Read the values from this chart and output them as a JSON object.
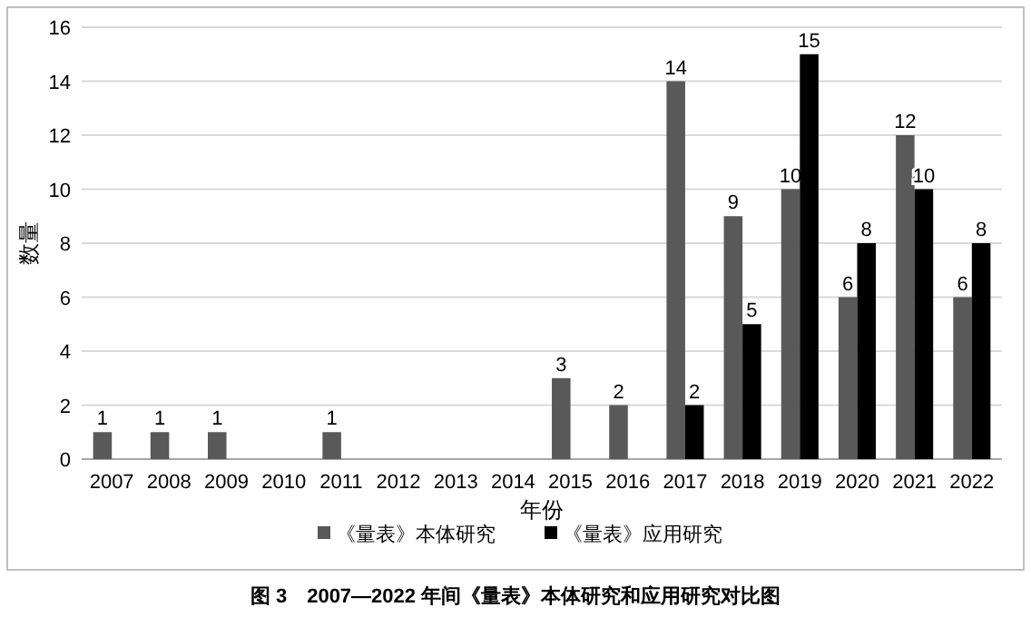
{
  "chart_data": {
    "type": "bar",
    "ylabel": "数量",
    "xlabel": "年份",
    "categories": [
      "2007",
      "2008",
      "2009",
      "2010",
      "2011",
      "2012",
      "2013",
      "2014",
      "2015",
      "2016",
      "2017",
      "2018",
      "2019",
      "2020",
      "2021",
      "2022"
    ],
    "series": [
      {
        "name": "《量表》本体研究",
        "color": "#595959",
        "values": [
          1,
          1,
          1,
          null,
          1,
          null,
          null,
          null,
          3,
          2,
          14,
          9,
          10,
          6,
          12,
          6
        ]
      },
      {
        "name": "《量表》应用研究",
        "color": "#000000",
        "values": [
          null,
          null,
          null,
          null,
          null,
          null,
          null,
          null,
          null,
          null,
          2,
          5,
          15,
          8,
          10,
          8
        ]
      }
    ],
    "ylim": [
      0,
      16
    ],
    "yticks": [
      0,
      2,
      4,
      6,
      8,
      10,
      12,
      14,
      16
    ],
    "grid": "y",
    "data_labels": true,
    "legend": "bottom",
    "annotations": [
      "图 3　2007—2022 年间《量表》本体研究和应用研究对比图"
    ]
  }
}
